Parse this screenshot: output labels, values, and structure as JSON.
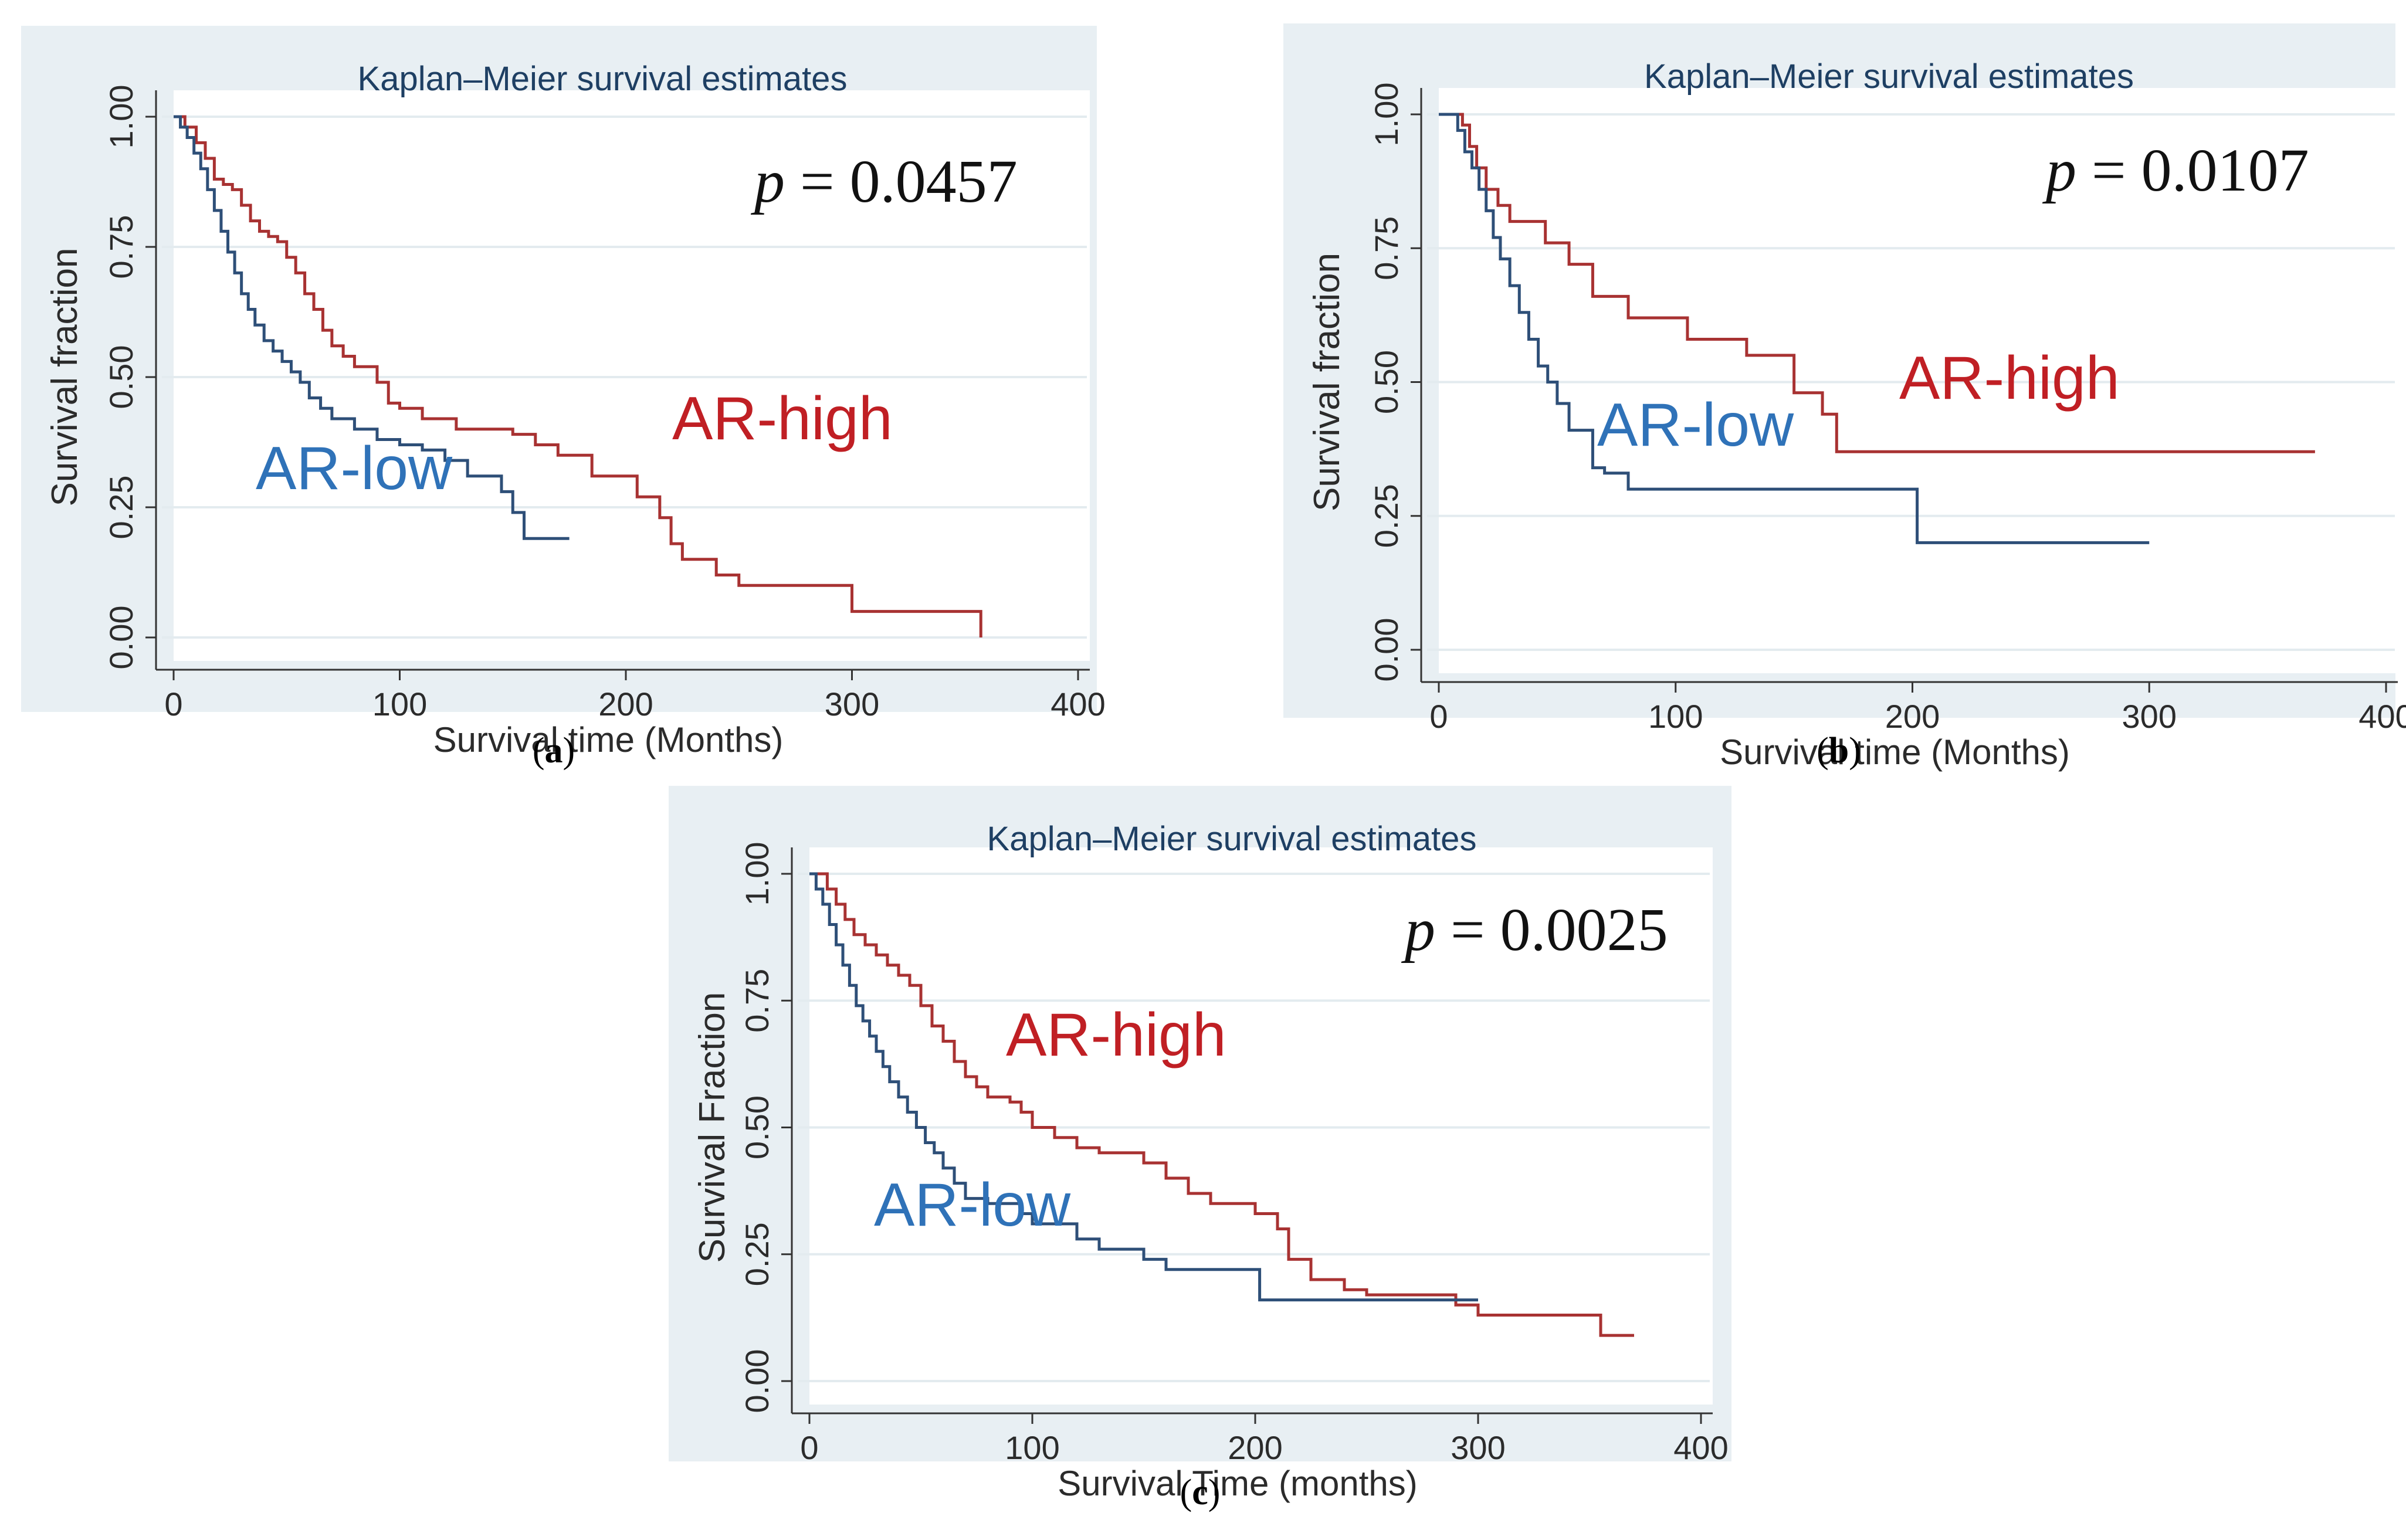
{
  "figure": {
    "captions": [
      {
        "open": "(",
        "letter": "a",
        "close": ")"
      },
      {
        "open": "(",
        "letter": "b",
        "close": ")"
      },
      {
        "open": "(",
        "letter": "c",
        "close": ")"
      }
    ]
  },
  "colors": {
    "panel_bg": "#e8eff3",
    "plot_bg": "#ffffff",
    "grid": "#e3ebef",
    "title": "#1e3f63",
    "axis_text": "#2b2b2b",
    "ar_high": "#a83232",
    "ar_low": "#2e4f78",
    "label_high": "#c01f24",
    "label_low": "#2f72b8"
  },
  "chart_data": [
    {
      "type": "line",
      "subtype": "kaplan-meier step",
      "title": "Kaplan–Meier survival estimates",
      "xlabel": "Survival time (Months)",
      "ylabel": "Survival fraction",
      "xlim": [
        0,
        400
      ],
      "ylim": [
        0,
        1
      ],
      "xticks": [
        0,
        100,
        200,
        300,
        400
      ],
      "xtick_labels": [
        "0",
        "100",
        "200",
        "300",
        "400"
      ],
      "yticks": [
        0,
        0.25,
        0.5,
        0.75,
        1
      ],
      "ytick_labels": [
        "0.00",
        "0.25",
        "0.50",
        "0.75",
        "1.00"
      ],
      "grid": true,
      "p_label": "p",
      "p_text": " = 0.0457",
      "series": [
        {
          "name": "AR-high",
          "label": "AR-high",
          "x": [
            0,
            5,
            10,
            14,
            18,
            22,
            26,
            30,
            34,
            38,
            42,
            46,
            50,
            54,
            58,
            62,
            66,
            70,
            75,
            80,
            90,
            95,
            100,
            110,
            125,
            150,
            160,
            170,
            185,
            205,
            215,
            220,
            225,
            240,
            250,
            300,
            345,
            357
          ],
          "y": [
            1.0,
            0.98,
            0.95,
            0.92,
            0.88,
            0.87,
            0.86,
            0.83,
            0.8,
            0.78,
            0.77,
            0.76,
            0.73,
            0.7,
            0.66,
            0.63,
            0.59,
            0.56,
            0.54,
            0.52,
            0.49,
            0.45,
            0.44,
            0.42,
            0.4,
            0.39,
            0.37,
            0.35,
            0.31,
            0.27,
            0.23,
            0.18,
            0.15,
            0.12,
            0.1,
            0.05,
            0.05,
            0.0
          ]
        },
        {
          "name": "AR-low",
          "label": "AR-low",
          "x": [
            0,
            3,
            6,
            9,
            12,
            15,
            18,
            21,
            24,
            27,
            30,
            33,
            36,
            40,
            44,
            48,
            52,
            56,
            60,
            65,
            70,
            80,
            90,
            100,
            110,
            120,
            130,
            145,
            150,
            155,
            175
          ],
          "y": [
            1.0,
            0.98,
            0.96,
            0.93,
            0.9,
            0.86,
            0.82,
            0.78,
            0.74,
            0.7,
            0.66,
            0.63,
            0.6,
            0.57,
            0.55,
            0.53,
            0.51,
            0.49,
            0.46,
            0.44,
            0.42,
            0.4,
            0.38,
            0.37,
            0.36,
            0.34,
            0.31,
            0.28,
            0.24,
            0.19,
            0.19
          ]
        }
      ]
    },
    {
      "type": "line",
      "subtype": "kaplan-meier step",
      "title": "Kaplan–Meier survival estimates",
      "xlabel": "Survival time (Months)",
      "ylabel": "Survival fraction",
      "xlim": [
        0,
        400
      ],
      "ylim": [
        0,
        1
      ],
      "xticks": [
        0,
        100,
        200,
        300,
        400
      ],
      "xtick_labels": [
        "0",
        "100",
        "200",
        "300",
        "400"
      ],
      "yticks": [
        0,
        0.25,
        0.5,
        0.75,
        1
      ],
      "ytick_labels": [
        "0.00",
        "0.25",
        "0.50",
        "0.75",
        "1.00"
      ],
      "grid": true,
      "p_label": "p",
      "p_text": " = 0.0107",
      "series": [
        {
          "name": "AR-high",
          "label": "AR-high",
          "x": [
            0,
            10,
            13,
            16,
            20,
            25,
            30,
            45,
            55,
            65,
            80,
            105,
            130,
            150,
            162,
            168,
            370
          ],
          "y": [
            1.0,
            0.98,
            0.94,
            0.9,
            0.86,
            0.83,
            0.8,
            0.76,
            0.72,
            0.66,
            0.62,
            0.58,
            0.55,
            0.48,
            0.44,
            0.37,
            0.37
          ]
        },
        {
          "name": "AR-low",
          "label": "AR-low",
          "x": [
            0,
            8,
            11,
            14,
            17,
            20,
            23,
            26,
            30,
            34,
            38,
            42,
            46,
            50,
            55,
            65,
            70,
            80,
            202,
            300
          ],
          "y": [
            1.0,
            0.97,
            0.93,
            0.9,
            0.86,
            0.82,
            0.77,
            0.73,
            0.68,
            0.63,
            0.58,
            0.53,
            0.5,
            0.46,
            0.41,
            0.34,
            0.33,
            0.3,
            0.2,
            0.2
          ]
        }
      ]
    },
    {
      "type": "line",
      "subtype": "kaplan-meier step",
      "title": "Kaplan–Meier survival estimates",
      "xlabel": "Survival Time (months)",
      "ylabel": "Survival Fraction",
      "xlim": [
        0,
        400
      ],
      "ylim": [
        0,
        1
      ],
      "xticks": [
        0,
        100,
        200,
        300,
        400
      ],
      "xtick_labels": [
        "0",
        "100",
        "200",
        "300",
        "400"
      ],
      "yticks": [
        0,
        0.25,
        0.5,
        0.75,
        1
      ],
      "ytick_labels": [
        "0.00",
        "0.25",
        "0.50",
        "0.75",
        "1.00"
      ],
      "grid": true,
      "p_label": "p",
      "p_text": " = 0.0025",
      "series": [
        {
          "name": "AR-high",
          "label": "AR-high",
          "x": [
            0,
            8,
            12,
            16,
            20,
            25,
            30,
            35,
            40,
            45,
            50,
            55,
            60,
            65,
            70,
            75,
            80,
            90,
            95,
            100,
            110,
            120,
            130,
            150,
            160,
            170,
            180,
            200,
            210,
            215,
            225,
            240,
            250,
            290,
            300,
            320,
            355,
            370
          ],
          "y": [
            1.0,
            0.97,
            0.94,
            0.91,
            0.88,
            0.86,
            0.84,
            0.82,
            0.8,
            0.78,
            0.74,
            0.7,
            0.67,
            0.63,
            0.6,
            0.58,
            0.56,
            0.55,
            0.53,
            0.5,
            0.48,
            0.46,
            0.45,
            0.43,
            0.4,
            0.37,
            0.35,
            0.33,
            0.3,
            0.24,
            0.2,
            0.18,
            0.17,
            0.15,
            0.13,
            0.13,
            0.09,
            0.09
          ]
        },
        {
          "name": "AR-low",
          "label": "AR-low",
          "x": [
            0,
            3,
            6,
            9,
            12,
            15,
            18,
            21,
            24,
            27,
            30,
            33,
            36,
            40,
            44,
            48,
            52,
            56,
            60,
            65,
            70,
            80,
            95,
            100,
            120,
            130,
            150,
            160,
            202,
            280,
            300
          ],
          "y": [
            1.0,
            0.97,
            0.94,
            0.9,
            0.86,
            0.82,
            0.78,
            0.74,
            0.71,
            0.68,
            0.65,
            0.62,
            0.59,
            0.56,
            0.53,
            0.5,
            0.47,
            0.45,
            0.42,
            0.39,
            0.36,
            0.35,
            0.33,
            0.31,
            0.28,
            0.26,
            0.24,
            0.22,
            0.16,
            0.16,
            0.16
          ]
        }
      ]
    }
  ]
}
